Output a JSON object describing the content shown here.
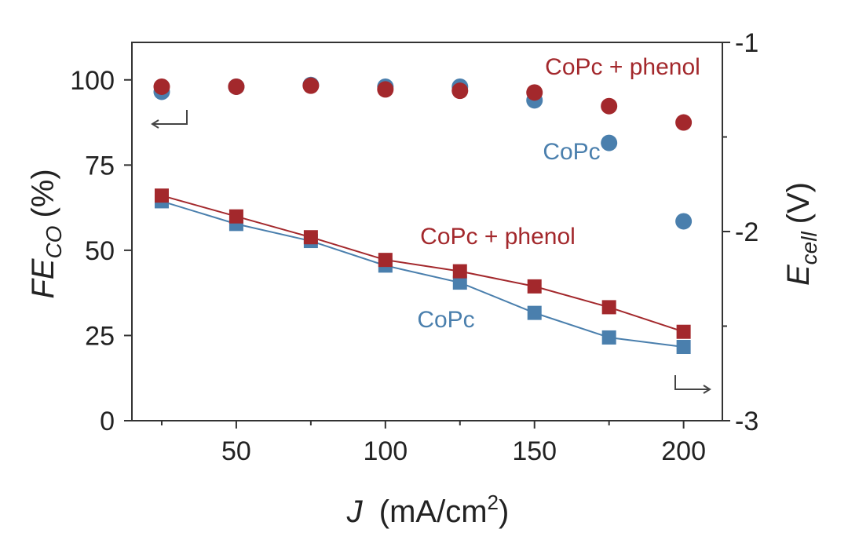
{
  "chart_data": {
    "type": "scatter",
    "x_axis": {
      "label_italic": "J",
      "label_unit": "(mA/cm",
      "label_sup": "2",
      "label_close": ")",
      "range": [
        15,
        213
      ],
      "ticks": [
        50,
        100,
        150,
        200
      ],
      "tick_labels": [
        "50",
        "100",
        "150",
        "200"
      ]
    },
    "y_left": {
      "label_main": "FE",
      "label_sub": "CO",
      "label_unit": "(%)",
      "range": [
        0,
        111
      ],
      "ticks": [
        0,
        25,
        50,
        75,
        100
      ],
      "tick_labels": [
        "0",
        "25",
        "50",
        "75",
        "100"
      ]
    },
    "y_right": {
      "label_main": "E",
      "label_sub": "cell",
      "label_unit": "(V)",
      "range": [
        -3.0,
        -1.0
      ],
      "ticks": [
        -3,
        -2,
        -1
      ],
      "tick_labels": [
        "-3",
        "-2",
        "-1"
      ]
    },
    "series": [
      {
        "name": "CoPc",
        "axis": "left",
        "marker": "circle",
        "connected": false,
        "color": "#4a7fad",
        "x": [
          25,
          50,
          75,
          100,
          125,
          150,
          175,
          200
        ],
        "values": [
          96.5,
          98.0,
          98.5,
          98.0,
          98.0,
          94.0,
          81.5,
          58.5
        ]
      },
      {
        "name": "CoPc + phenol",
        "axis": "left",
        "marker": "circle",
        "connected": false,
        "color": "#a3282c",
        "x": [
          25,
          50,
          75,
          100,
          125,
          150,
          175,
          200
        ],
        "values": [
          98.0,
          98.0,
          98.3,
          97.2,
          96.8,
          96.3,
          92.3,
          87.5
        ]
      },
      {
        "name": "CoPc",
        "axis": "right",
        "marker": "square",
        "connected": true,
        "color": "#4a7fad",
        "x": [
          25,
          50,
          75,
          100,
          125,
          150,
          175,
          200
        ],
        "values": [
          -1.84,
          -1.96,
          -2.05,
          -2.18,
          -2.27,
          -2.43,
          -2.56,
          -2.61
        ]
      },
      {
        "name": "CoPc + phenol",
        "axis": "right",
        "marker": "square",
        "connected": true,
        "color": "#a3282c",
        "x": [
          25,
          50,
          75,
          100,
          125,
          150,
          175,
          200
        ],
        "values": [
          -1.81,
          -1.92,
          -2.03,
          -2.15,
          -2.21,
          -2.29,
          -2.4,
          -2.53
        ]
      }
    ],
    "annotations": [
      {
        "text": "CoPc + phenol",
        "color": "#a3282c",
        "group": "fe"
      },
      {
        "text": "CoPc",
        "color": "#4a7fad",
        "group": "fe"
      },
      {
        "text": "CoPc + phenol",
        "color": "#a3282c",
        "group": "ecell"
      },
      {
        "text": "CoPc",
        "color": "#4a7fad",
        "group": "ecell"
      }
    ],
    "axis_indicators": [
      "left-arrow",
      "right-arrow"
    ]
  }
}
